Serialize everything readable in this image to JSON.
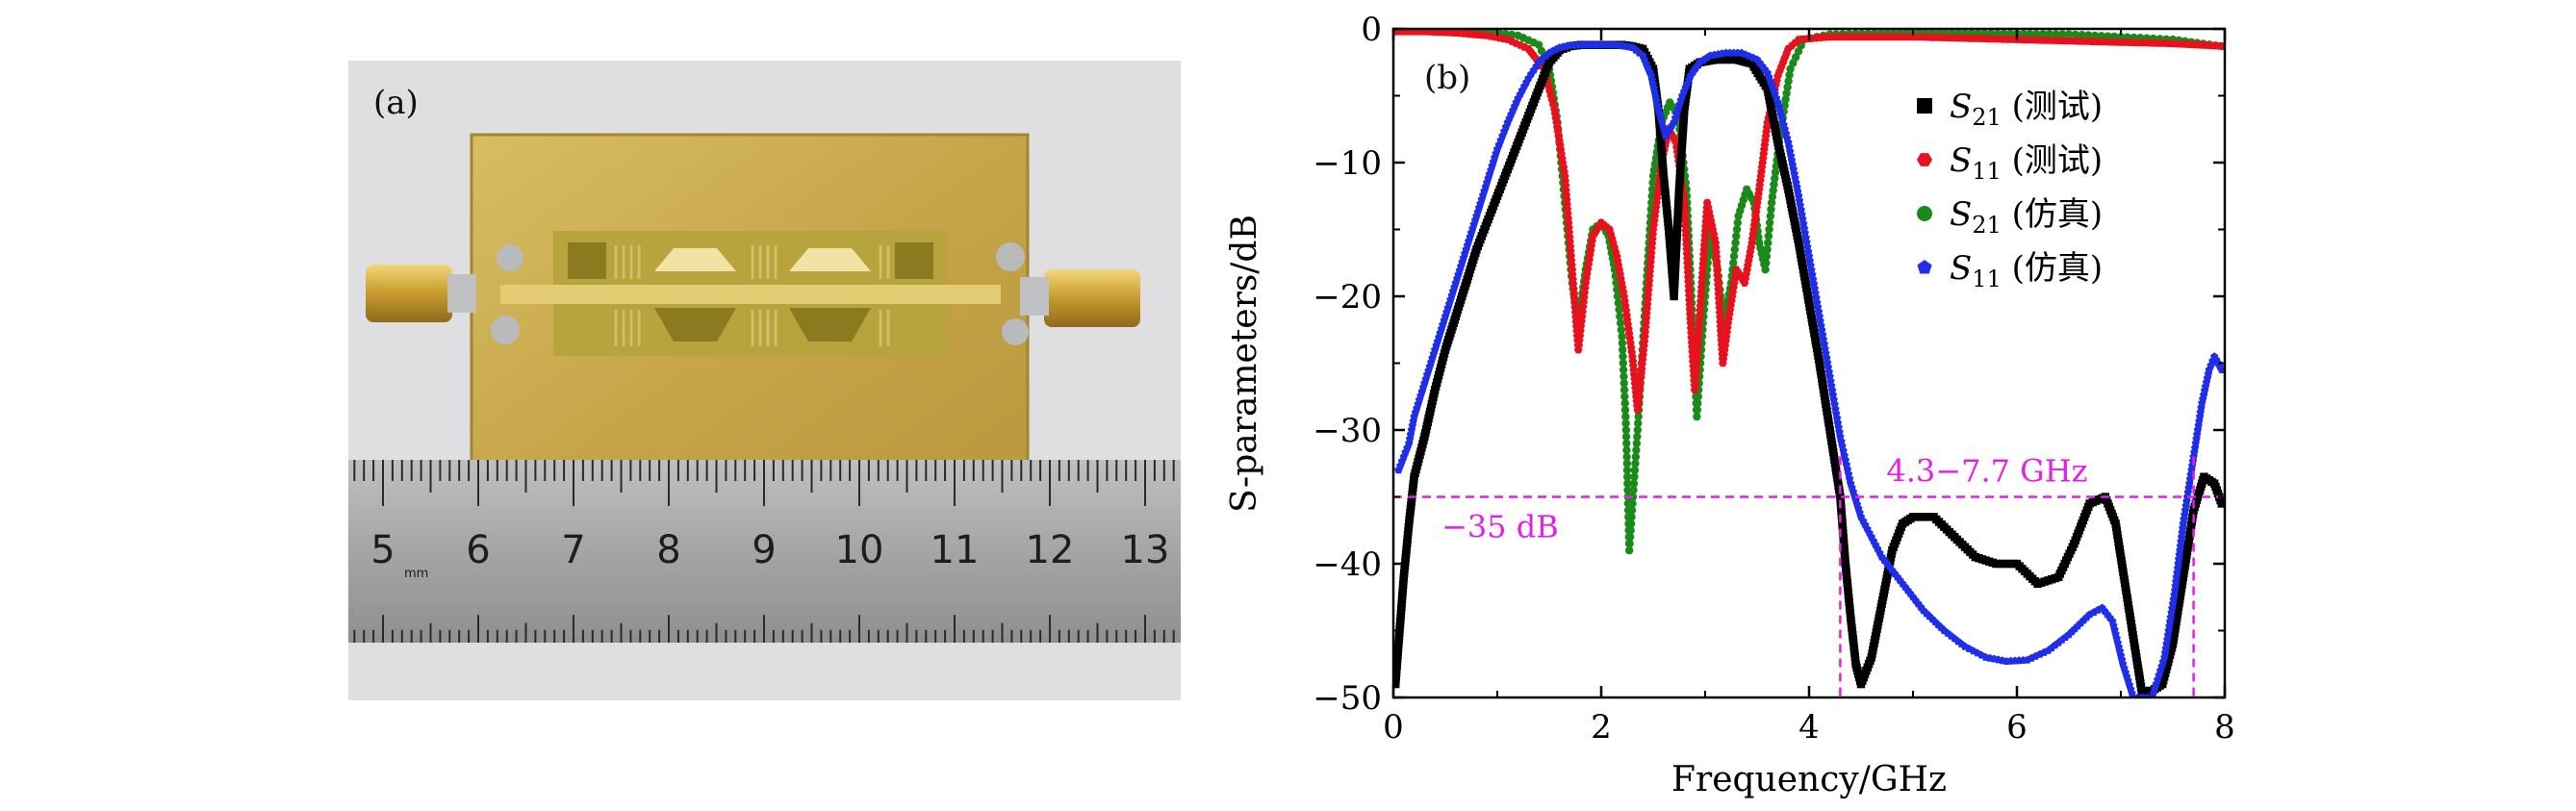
{
  "photo": {
    "panel_label": "(a)",
    "ruler_numbers": [
      "5",
      "6",
      "7",
      "8",
      "9",
      "10",
      "11",
      "12",
      "13"
    ],
    "ruler_unit": "mm",
    "colors": {
      "board": "#c9a94e",
      "ruler": "#a7a9ab",
      "background": "#dedede"
    }
  },
  "chart_data": {
    "type": "line",
    "panel_label": "(b)",
    "title": "",
    "xlabel": "Frequency/GHz",
    "ylabel": "S-parameters/dB",
    "xlim": [
      0,
      8
    ],
    "ylim": [
      -50,
      0
    ],
    "xticks": [
      "0",
      "2",
      "4",
      "6",
      "8"
    ],
    "yticks": [
      "0",
      "−10",
      "−20",
      "−30",
      "−40",
      "−50"
    ],
    "legend": [
      {
        "sym": "S",
        "sub": "21",
        "rest": " (测试)",
        "color": "#000000",
        "marker": "square"
      },
      {
        "sym": "S",
        "sub": "11",
        "rest": " (测试)",
        "color": "#e8121e",
        "marker": "hexagon"
      },
      {
        "sym": "S",
        "sub": "21",
        "rest": " (仿真)",
        "color": "#1a8a1a",
        "marker": "circle"
      },
      {
        "sym": "S",
        "sub": "11",
        "rest": " (仿真)",
        "color": "#1f2ee8",
        "marker": "pentagon"
      }
    ],
    "annotations": {
      "level_label": "−35 dB",
      "level_value": -35,
      "band_label": "4.3−7.7 GHz",
      "band_start": 4.3,
      "band_end": 7.7,
      "color": "#e61ee6"
    },
    "series": [
      {
        "name": "S21 (测试)",
        "color": "#000000",
        "marker": "square",
        "points": [
          [
            0.02,
            -49
          ],
          [
            0.05,
            -46
          ],
          [
            0.1,
            -41
          ],
          [
            0.15,
            -37
          ],
          [
            0.2,
            -33.5
          ],
          [
            0.3,
            -30.5
          ],
          [
            0.4,
            -27
          ],
          [
            0.5,
            -24
          ],
          [
            0.6,
            -21.5
          ],
          [
            0.7,
            -19
          ],
          [
            0.8,
            -16.5
          ],
          [
            0.9,
            -14.5
          ],
          [
            1.0,
            -12.5
          ],
          [
            1.1,
            -10.5
          ],
          [
            1.2,
            -8.5
          ],
          [
            1.3,
            -6.5
          ],
          [
            1.4,
            -4.5
          ],
          [
            1.5,
            -2.5
          ],
          [
            1.6,
            -1.6
          ],
          [
            1.7,
            -1.3
          ],
          [
            1.8,
            -1.2
          ],
          [
            1.9,
            -1.2
          ],
          [
            2.0,
            -1.2
          ],
          [
            2.1,
            -1.2
          ],
          [
            2.2,
            -1.2
          ],
          [
            2.3,
            -1.3
          ],
          [
            2.4,
            -1.5
          ],
          [
            2.5,
            -3
          ],
          [
            2.55,
            -6
          ],
          [
            2.6,
            -11
          ],
          [
            2.65,
            -15
          ],
          [
            2.7,
            -20
          ],
          [
            2.75,
            -12
          ],
          [
            2.8,
            -6
          ],
          [
            2.85,
            -3
          ],
          [
            2.95,
            -2.5
          ],
          [
            3.1,
            -2.3
          ],
          [
            3.3,
            -2.3
          ],
          [
            3.45,
            -2.6
          ],
          [
            3.6,
            -4.5
          ],
          [
            3.7,
            -8.5
          ],
          [
            3.8,
            -12
          ],
          [
            3.9,
            -16
          ],
          [
            4.0,
            -20.5
          ],
          [
            4.1,
            -25
          ],
          [
            4.2,
            -30
          ],
          [
            4.3,
            -35
          ],
          [
            4.35,
            -40
          ],
          [
            4.4,
            -44
          ],
          [
            4.45,
            -47.5
          ],
          [
            4.5,
            -49
          ],
          [
            4.6,
            -47
          ],
          [
            4.7,
            -43
          ],
          [
            4.8,
            -39
          ],
          [
            4.9,
            -37
          ],
          [
            5.0,
            -36.5
          ],
          [
            5.2,
            -36.5
          ],
          [
            5.4,
            -38
          ],
          [
            5.6,
            -39.5
          ],
          [
            5.8,
            -40
          ],
          [
            6.0,
            -40
          ],
          [
            6.2,
            -41.5
          ],
          [
            6.4,
            -41
          ],
          [
            6.55,
            -38.5
          ],
          [
            6.7,
            -35.5
          ],
          [
            6.85,
            -35
          ],
          [
            6.95,
            -37
          ],
          [
            7.05,
            -42
          ],
          [
            7.15,
            -47
          ],
          [
            7.2,
            -49.5
          ],
          [
            7.3,
            -49.5
          ],
          [
            7.4,
            -49
          ],
          [
            7.5,
            -46
          ],
          [
            7.6,
            -41
          ],
          [
            7.7,
            -36
          ],
          [
            7.8,
            -33.5
          ],
          [
            7.9,
            -34
          ],
          [
            7.97,
            -35.5
          ]
        ]
      },
      {
        "name": "S11 (测试)",
        "color": "#e8121e",
        "marker": "hexagon",
        "points": [
          [
            0.0,
            -0.2
          ],
          [
            0.3,
            -0.2
          ],
          [
            0.6,
            -0.3
          ],
          [
            0.9,
            -0.5
          ],
          [
            1.1,
            -0.8
          ],
          [
            1.3,
            -1.5
          ],
          [
            1.45,
            -3
          ],
          [
            1.55,
            -6
          ],
          [
            1.65,
            -11
          ],
          [
            1.72,
            -18
          ],
          [
            1.78,
            -24
          ],
          [
            1.85,
            -19
          ],
          [
            1.92,
            -15.5
          ],
          [
            2.0,
            -14.5
          ],
          [
            2.08,
            -15
          ],
          [
            2.15,
            -17
          ],
          [
            2.22,
            -20
          ],
          [
            2.3,
            -24.5
          ],
          [
            2.35,
            -28.5
          ],
          [
            2.42,
            -23
          ],
          [
            2.5,
            -15
          ],
          [
            2.58,
            -10
          ],
          [
            2.65,
            -7.5
          ],
          [
            2.72,
            -8.5
          ],
          [
            2.8,
            -13
          ],
          [
            2.86,
            -22
          ],
          [
            2.9,
            -27
          ],
          [
            2.96,
            -20
          ],
          [
            3.02,
            -13
          ],
          [
            3.1,
            -16
          ],
          [
            3.17,
            -25
          ],
          [
            3.22,
            -22
          ],
          [
            3.3,
            -18
          ],
          [
            3.38,
            -19
          ],
          [
            3.45,
            -16
          ],
          [
            3.52,
            -12
          ],
          [
            3.6,
            -7
          ],
          [
            3.7,
            -3.5
          ],
          [
            3.8,
            -1.5
          ],
          [
            3.9,
            -0.8
          ],
          [
            4.2,
            -0.6
          ],
          [
            5.0,
            -0.6
          ],
          [
            6.0,
            -0.8
          ],
          [
            7.0,
            -1.0
          ],
          [
            7.5,
            -1.1
          ],
          [
            8.0,
            -1.3
          ]
        ]
      },
      {
        "name": "S21 (仿真)",
        "color": "#1a8a1a",
        "marker": "circle",
        "points": [
          [
            0.0,
            -0.1
          ],
          [
            0.5,
            -0.1
          ],
          [
            0.9,
            -0.2
          ],
          [
            1.2,
            -0.5
          ],
          [
            1.4,
            -1.2
          ],
          [
            1.5,
            -3
          ],
          [
            1.58,
            -7
          ],
          [
            1.65,
            -13
          ],
          [
            1.72,
            -19
          ],
          [
            1.78,
            -22
          ],
          [
            1.85,
            -18
          ],
          [
            1.92,
            -15
          ],
          [
            2.0,
            -14.5
          ],
          [
            2.07,
            -15.5
          ],
          [
            2.13,
            -18
          ],
          [
            2.2,
            -23
          ],
          [
            2.24,
            -30
          ],
          [
            2.27,
            -39
          ],
          [
            2.35,
            -30
          ],
          [
            2.42,
            -21
          ],
          [
            2.5,
            -11
          ],
          [
            2.58,
            -7
          ],
          [
            2.66,
            -5.5
          ],
          [
            2.74,
            -6.5
          ],
          [
            2.82,
            -12
          ],
          [
            2.88,
            -22
          ],
          [
            2.92,
            -29
          ],
          [
            2.98,
            -22
          ],
          [
            3.05,
            -15
          ],
          [
            3.12,
            -18
          ],
          [
            3.18,
            -22
          ],
          [
            3.25,
            -19
          ],
          [
            3.32,
            -14
          ],
          [
            3.4,
            -12
          ],
          [
            3.47,
            -13
          ],
          [
            3.52,
            -16
          ],
          [
            3.58,
            -18
          ],
          [
            3.64,
            -13
          ],
          [
            3.72,
            -8
          ],
          [
            3.82,
            -3
          ],
          [
            3.95,
            -0.8
          ],
          [
            4.2,
            -0.4
          ],
          [
            5.0,
            -0.3
          ],
          [
            6.5,
            -0.4
          ],
          [
            7.5,
            -0.8
          ],
          [
            7.97,
            -1.3
          ]
        ]
      },
      {
        "name": "S11 (仿真)",
        "color": "#1f2ee8",
        "marker": "pentagon",
        "points": [
          [
            0.05,
            -33
          ],
          [
            0.1,
            -32
          ],
          [
            0.15,
            -31
          ],
          [
            0.2,
            -29
          ],
          [
            0.3,
            -26.5
          ],
          [
            0.4,
            -24
          ],
          [
            0.5,
            -21.5
          ],
          [
            0.6,
            -19
          ],
          [
            0.7,
            -16.5
          ],
          [
            0.8,
            -14
          ],
          [
            0.9,
            -11.5
          ],
          [
            1.0,
            -9
          ],
          [
            1.1,
            -7
          ],
          [
            1.2,
            -5.2
          ],
          [
            1.3,
            -3.7
          ],
          [
            1.4,
            -2.5
          ],
          [
            1.5,
            -1.8
          ],
          [
            1.6,
            -1.4
          ],
          [
            1.7,
            -1.25
          ],
          [
            1.8,
            -1.2
          ],
          [
            1.9,
            -1.2
          ],
          [
            2.0,
            -1.2
          ],
          [
            2.1,
            -1.2
          ],
          [
            2.2,
            -1.25
          ],
          [
            2.3,
            -1.4
          ],
          [
            2.4,
            -2
          ],
          [
            2.48,
            -3.5
          ],
          [
            2.55,
            -6
          ],
          [
            2.62,
            -8
          ],
          [
            2.7,
            -7
          ],
          [
            2.78,
            -5
          ],
          [
            2.86,
            -3.5
          ],
          [
            2.95,
            -2.5
          ],
          [
            3.05,
            -2
          ],
          [
            3.2,
            -1.8
          ],
          [
            3.35,
            -1.8
          ],
          [
            3.5,
            -2.3
          ],
          [
            3.6,
            -3.3
          ],
          [
            3.7,
            -5.5
          ],
          [
            3.8,
            -8.5
          ],
          [
            3.9,
            -12.5
          ],
          [
            4.0,
            -17
          ],
          [
            4.1,
            -21.5
          ],
          [
            4.2,
            -26
          ],
          [
            4.3,
            -30.5
          ],
          [
            4.4,
            -34
          ],
          [
            4.5,
            -36.5
          ],
          [
            4.7,
            -39.5
          ],
          [
            4.9,
            -41.5
          ],
          [
            5.1,
            -43.5
          ],
          [
            5.3,
            -45
          ],
          [
            5.5,
            -46.2
          ],
          [
            5.7,
            -47
          ],
          [
            5.9,
            -47.3
          ],
          [
            6.1,
            -47.2
          ],
          [
            6.3,
            -46.5
          ],
          [
            6.5,
            -45.3
          ],
          [
            6.7,
            -43.8
          ],
          [
            6.82,
            -43.3
          ],
          [
            6.92,
            -44.3
          ],
          [
            7.02,
            -47.5
          ],
          [
            7.12,
            -50
          ],
          [
            7.3,
            -50
          ],
          [
            7.42,
            -47
          ],
          [
            7.52,
            -42
          ],
          [
            7.6,
            -37
          ],
          [
            7.7,
            -32
          ],
          [
            7.78,
            -28
          ],
          [
            7.85,
            -25.5
          ],
          [
            7.9,
            -24.5
          ],
          [
            7.97,
            -25.5
          ]
        ]
      }
    ]
  }
}
